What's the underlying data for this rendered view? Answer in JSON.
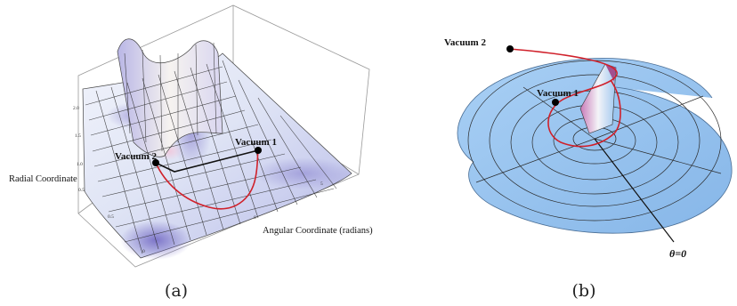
{
  "panel_a": {
    "caption": "(a)",
    "axis_radial": "Radial Coordinate",
    "axis_angular": "Angular Coordinate (radians)",
    "vacuum_1": "Vacuum 1",
    "vacuum_2": "Vacuum 2",
    "ticks": {
      "vertical": [
        "2.0",
        "1.5",
        "1.0",
        "0.5"
      ],
      "bottom_left": [
        "0.5",
        "0"
      ],
      "right": [
        "0",
        "5"
      ]
    }
  },
  "panel_b": {
    "caption": "(b)",
    "vacuum_1": "Vacuum 1",
    "vacuum_2": "Vacuum 2",
    "theta_label": "θ=0"
  },
  "colors": {
    "surface_light": "#e9eef8",
    "surface_purple": "#7a73c4",
    "sheet_blue": "#9cc6f0",
    "path_red": "#d0202a",
    "grid_line": "#2a2a2a"
  }
}
